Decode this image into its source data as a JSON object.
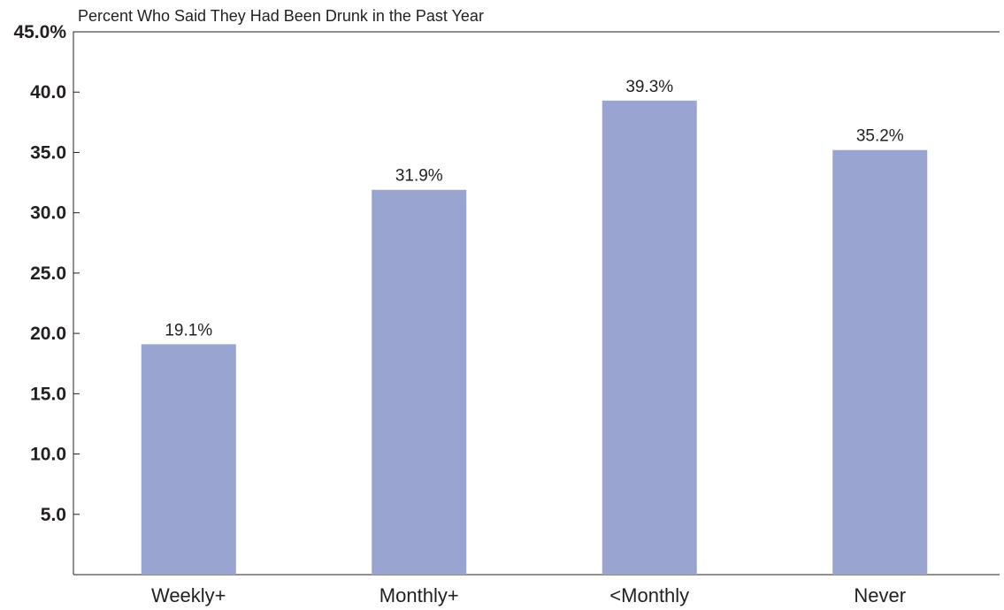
{
  "chart_data": {
    "type": "bar",
    "title": "Percent Who Said They Had Been Drunk in the Past Year",
    "xlabel": "",
    "ylabel": "",
    "categories": [
      "Weekly+",
      "Monthly+",
      "<Monthly",
      "Never"
    ],
    "values": [
      19.1,
      31.9,
      39.3,
      35.2
    ],
    "data_labels": [
      "19.1%",
      "31.9%",
      "39.3%",
      "35.2%"
    ],
    "ylim": [
      0,
      45
    ],
    "yticks": [
      5,
      10,
      15,
      20,
      25,
      30,
      35,
      40,
      45
    ],
    "ytick_labels": [
      "5.0",
      "10.0",
      "15.0",
      "20.0",
      "25.0",
      "30.0",
      "35.0",
      "40.0",
      "45.0%"
    ],
    "grid": false,
    "legend": "none",
    "bar_color": "#9aa4d1"
  }
}
